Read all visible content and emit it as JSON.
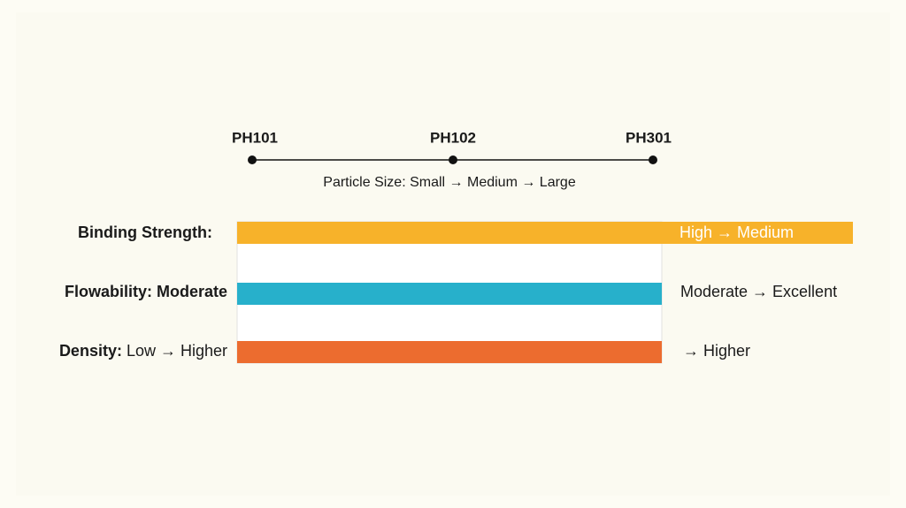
{
  "timeline": {
    "nodes": [
      {
        "label": "PH101"
      },
      {
        "label": "PH102"
      },
      {
        "label": "PH301"
      }
    ],
    "caption": "Particle Size: Small → Medium → Large"
  },
  "rows": [
    {
      "label": "Binding Strength:",
      "note": "High → Medium"
    },
    {
      "label": "Flowability: Moderate",
      "note": "Moderate → Excellent"
    },
    {
      "label": "Density:",
      "label_detail": "Low → Higher",
      "note": "→ Higher"
    }
  ]
}
